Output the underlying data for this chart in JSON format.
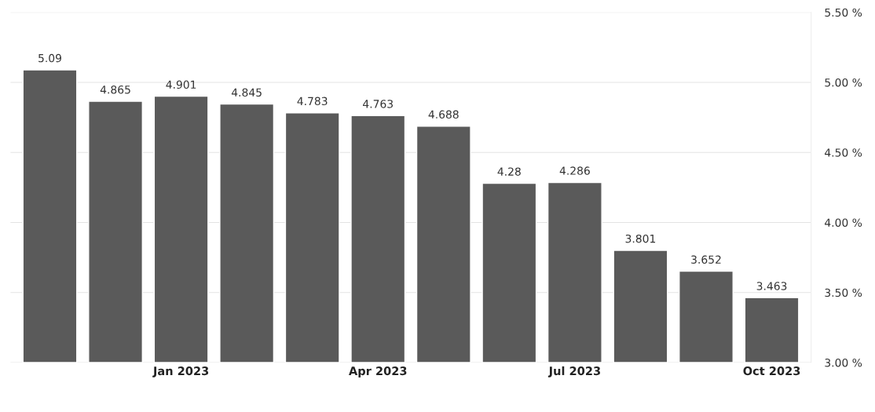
{
  "chart_data": {
    "type": "bar",
    "categories": [
      null,
      null,
      "Jan 2023",
      null,
      null,
      "Apr 2023",
      null,
      null,
      "Jul 2023",
      null,
      null,
      "Oct 2023"
    ],
    "values": [
      5.09,
      4.865,
      4.901,
      4.845,
      4.783,
      4.763,
      4.688,
      4.28,
      4.286,
      3.801,
      3.652,
      3.463
    ],
    "color": "#5a5a5a",
    "ylim": [
      3.0,
      5.5
    ],
    "yticks": [
      {
        "value": 3.0,
        "label": "3.00 %"
      },
      {
        "value": 3.5,
        "label": "3.50 %"
      },
      {
        "value": 4.0,
        "label": "4.00 %"
      },
      {
        "value": 4.5,
        "label": "4.50 %"
      },
      {
        "value": 5.0,
        "label": "5.00 %"
      },
      {
        "value": 5.5,
        "label": "5.50 %"
      }
    ],
    "data_labels": true,
    "grid": "y"
  }
}
